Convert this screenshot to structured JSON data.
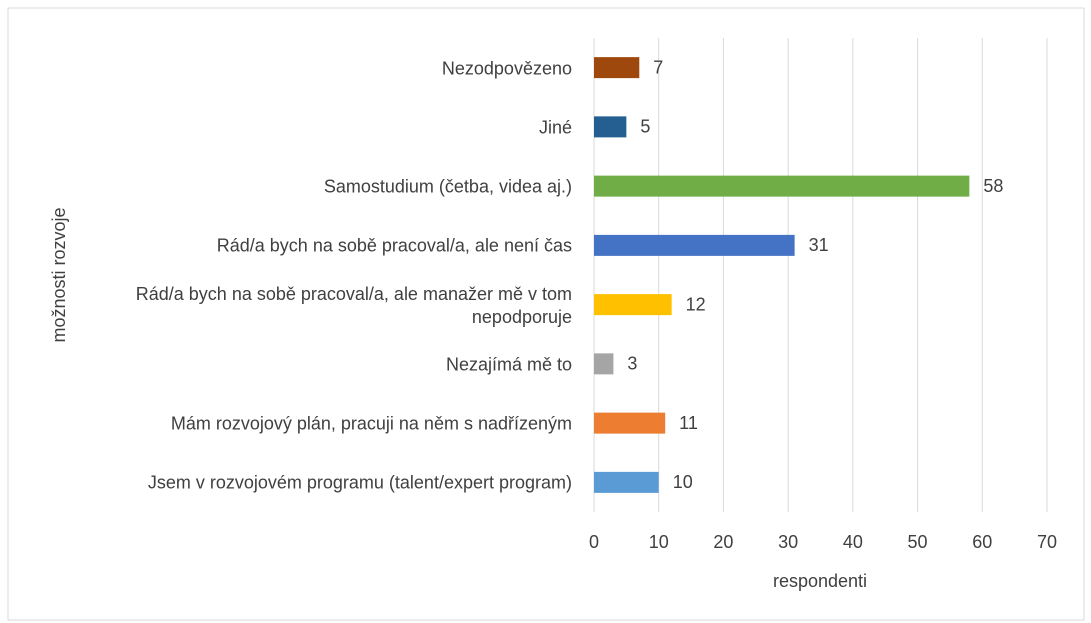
{
  "chart_data": {
    "type": "barh",
    "categories": [
      "Nezodpovězeno",
      "Jiné",
      "Samostudium (četba, videa aj.)",
      "Rád/a bych na sobě pracoval/a, ale není čas",
      "Rád/a bych na sobě pracoval/a, ale manažer mě v tom nepodporuje",
      "Nezajímá mě to",
      "Mám rozvojový plán, pracuji na něm s nadřízeným",
      "Jsem v rozvojovém programu (talent/expert program)"
    ],
    "values": [
      7,
      5,
      58,
      31,
      12,
      3,
      11,
      10
    ],
    "colors": [
      "#9e480e",
      "#255e91",
      "#70ad47",
      "#4472c4",
      "#ffc000",
      "#a5a5a5",
      "#ed7d31",
      "#5b9bd5"
    ],
    "xlim": [
      0,
      70
    ],
    "xticks": [
      0,
      10,
      20,
      30,
      40,
      50,
      60,
      70
    ],
    "grid": true,
    "xlabel": "respondenti",
    "ylabel": "možnosti rozvoje"
  }
}
